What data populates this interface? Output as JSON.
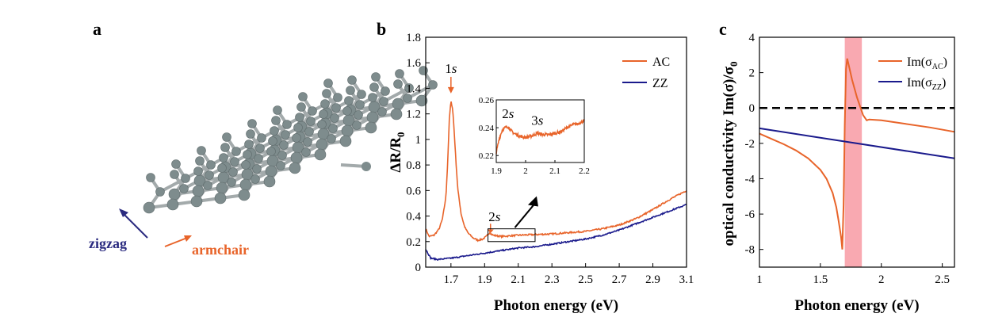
{
  "panels": {
    "a": {
      "letter": "a",
      "zigzag_label": "zigzag",
      "armchair_label": "armchair",
      "colors": {
        "zigzag": "#2b2b80",
        "armchair": "#e8642a",
        "atom": "#7e8c8d",
        "bond": "#a3aaab"
      }
    },
    "b": {
      "letter": "b"
    },
    "c": {
      "letter": "c"
    }
  },
  "chart_data": [
    {
      "type": "line",
      "panel": "b",
      "xlabel": "Photon energy (eV)",
      "ylabel": "ΔR/R0",
      "ylabel_main": "ΔR/R",
      "ylabel_sub": "0",
      "xlim": [
        1.55,
        3.1
      ],
      "ylim": [
        0,
        1.8
      ],
      "xticks": [
        1.7,
        1.9,
        2.1,
        2.3,
        2.5,
        2.7,
        2.9,
        3.1
      ],
      "xtick_labels": [
        "1.7",
        "1.9",
        "2.1",
        "2.3",
        "2.5",
        "2.7",
        "2.9",
        "3.1"
      ],
      "yticks": [
        0,
        0.2,
        0.4,
        0.6,
        0.8,
        1,
        1.2,
        1.4,
        1.6,
        1.8
      ],
      "ytick_labels": [
        "0",
        "0.2",
        "0.4",
        "0.6",
        "0.8",
        "1",
        "1.2",
        "1.4",
        "1.6",
        "1.8"
      ],
      "legend_position": "top-right",
      "series": [
        {
          "name": "AC",
          "color": "#e8642a",
          "x": [
            1.55,
            1.57,
            1.6,
            1.63,
            1.65,
            1.67,
            1.68,
            1.69,
            1.7,
            1.71,
            1.72,
            1.73,
            1.74,
            1.76,
            1.78,
            1.8,
            1.83,
            1.86,
            1.89,
            1.91,
            1.93,
            1.95,
            2.0,
            2.05,
            2.1,
            2.2,
            2.3,
            2.4,
            2.5,
            2.6,
            2.7,
            2.8,
            2.9,
            3.0,
            3.1
          ],
          "y": [
            0.3,
            0.24,
            0.25,
            0.3,
            0.38,
            0.55,
            0.8,
            1.15,
            1.3,
            1.24,
            1.05,
            0.82,
            0.62,
            0.42,
            0.32,
            0.27,
            0.23,
            0.21,
            0.22,
            0.24,
            0.27,
            0.25,
            0.24,
            0.245,
            0.25,
            0.255,
            0.26,
            0.27,
            0.28,
            0.3,
            0.33,
            0.38,
            0.45,
            0.53,
            0.6
          ]
        },
        {
          "name": "ZZ",
          "color": "#1a1a8c",
          "x": [
            1.55,
            1.58,
            1.62,
            1.7,
            1.8,
            1.9,
            2.0,
            2.1,
            2.2,
            2.3,
            2.4,
            2.5,
            2.6,
            2.7,
            2.8,
            2.9,
            3.0,
            3.1
          ],
          "y": [
            0.14,
            0.07,
            0.06,
            0.07,
            0.09,
            0.11,
            0.13,
            0.15,
            0.16,
            0.18,
            0.2,
            0.22,
            0.25,
            0.29,
            0.34,
            0.39,
            0.44,
            0.49
          ]
        }
      ],
      "annotations": [
        {
          "text": "1s",
          "x": 1.7,
          "y": 1.52
        },
        {
          "text": "2s",
          "x": 1.94,
          "y": 0.36
        }
      ],
      "highlight_box": {
        "x": [
          1.92,
          2.2
        ],
        "y": [
          0.2,
          0.3
        ]
      },
      "inset": {
        "xlim": [
          1.9,
          2.2
        ],
        "ylim": [
          0.215,
          0.26
        ],
        "xticks": [
          1.9,
          2,
          2.1,
          2.2
        ],
        "xtick_labels": [
          "1.9",
          "2",
          "2.1",
          "2.2"
        ],
        "yticks": [
          0.22,
          0.24,
          0.26
        ],
        "ytick_labels": [
          "0.22",
          "0.24",
          "0.26"
        ],
        "annotations": [
          {
            "text": "2s",
            "x": 1.94,
            "y": 0.247
          },
          {
            "text": "3s",
            "x": 2.04,
            "y": 0.242
          }
        ],
        "series": [
          {
            "name": "AC",
            "color": "#e8642a",
            "x": [
              1.9,
              1.91,
              1.92,
              1.93,
              1.94,
              1.95,
              1.96,
              1.98,
              2.0,
              2.02,
              2.04,
              2.06,
              2.08,
              2.1,
              2.12,
              2.14,
              2.16,
              2.18,
              2.2
            ],
            "y": [
              0.222,
              0.232,
              0.238,
              0.24,
              0.241,
              0.238,
              0.236,
              0.234,
              0.233,
              0.234,
              0.236,
              0.235,
              0.235,
              0.236,
              0.237,
              0.24,
              0.242,
              0.243,
              0.245
            ]
          }
        ]
      }
    },
    {
      "type": "line",
      "panel": "c",
      "xlabel": "Photon energy (eV)",
      "ylabel": "optical conductivity Im(σ)/σ0",
      "ylabel_main": "optical conductivity Im(σ)/σ",
      "ylabel_sub": "0",
      "xlim": [
        1.0,
        2.6
      ],
      "ylim": [
        -9,
        4
      ],
      "xticks": [
        1,
        1.5,
        2,
        2.5
      ],
      "xtick_labels": [
        "1",
        "1.5",
        "2",
        "2.5"
      ],
      "yticks": [
        -8,
        -6,
        -4,
        -2,
        0,
        2,
        4
      ],
      "ytick_labels": [
        "-8",
        "-6",
        "-4",
        "-2",
        "0",
        "2",
        "4"
      ],
      "legend_position": "top-right",
      "highlight_band": {
        "x": [
          1.7,
          1.84
        ],
        "color": "#f8a0a8"
      },
      "zero_line": {
        "y": 0,
        "style": "dashed"
      },
      "series": [
        {
          "name": "Im(σAC)",
          "name_main": "Im(σ",
          "name_sub": "AC",
          "name_tail": ")",
          "color": "#e8642a",
          "x": [
            1.0,
            1.1,
            1.2,
            1.3,
            1.4,
            1.5,
            1.55,
            1.6,
            1.63,
            1.65,
            1.67,
            1.68,
            1.69,
            1.7,
            1.71,
            1.72,
            1.74,
            1.76,
            1.8,
            1.85,
            1.88,
            1.9,
            2.0,
            2.2,
            2.4,
            2.6
          ],
          "y": [
            -1.45,
            -1.75,
            -2.05,
            -2.4,
            -2.85,
            -3.5,
            -4.0,
            -4.8,
            -5.6,
            -6.4,
            -7.3,
            -8.0,
            -5.5,
            -1.0,
            2.2,
            2.8,
            2.2,
            1.6,
            0.6,
            -0.4,
            -0.7,
            -0.65,
            -0.7,
            -0.9,
            -1.1,
            -1.35
          ]
        },
        {
          "name": "Im(σZZ)",
          "name_main": "Im(σ",
          "name_sub": "ZZ",
          "name_tail": ")",
          "color": "#1a1a8c",
          "x": [
            1.0,
            2.6
          ],
          "y": [
            -1.15,
            -2.85
          ]
        }
      ]
    }
  ]
}
